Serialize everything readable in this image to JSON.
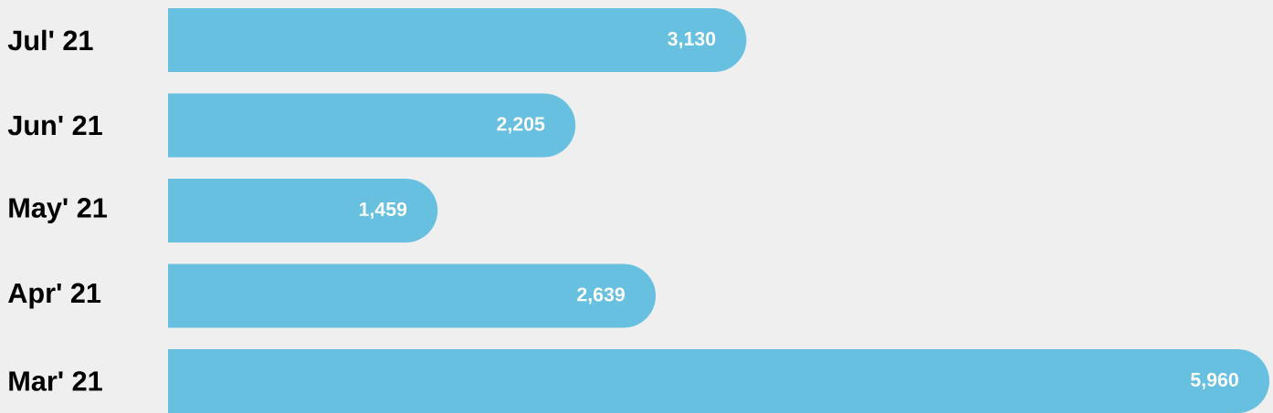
{
  "chart_data": {
    "type": "bar",
    "orientation": "horizontal",
    "categories": [
      "Jul' 21",
      "Jun' 21",
      "May' 21",
      "Apr' 21",
      "Mar' 21"
    ],
    "values": [
      3130,
      2205,
      1459,
      2639,
      5960
    ],
    "value_labels": [
      "3,130",
      "2,205",
      "1,459",
      "2,639",
      "5,960"
    ],
    "color": "#67c0df"
  }
}
